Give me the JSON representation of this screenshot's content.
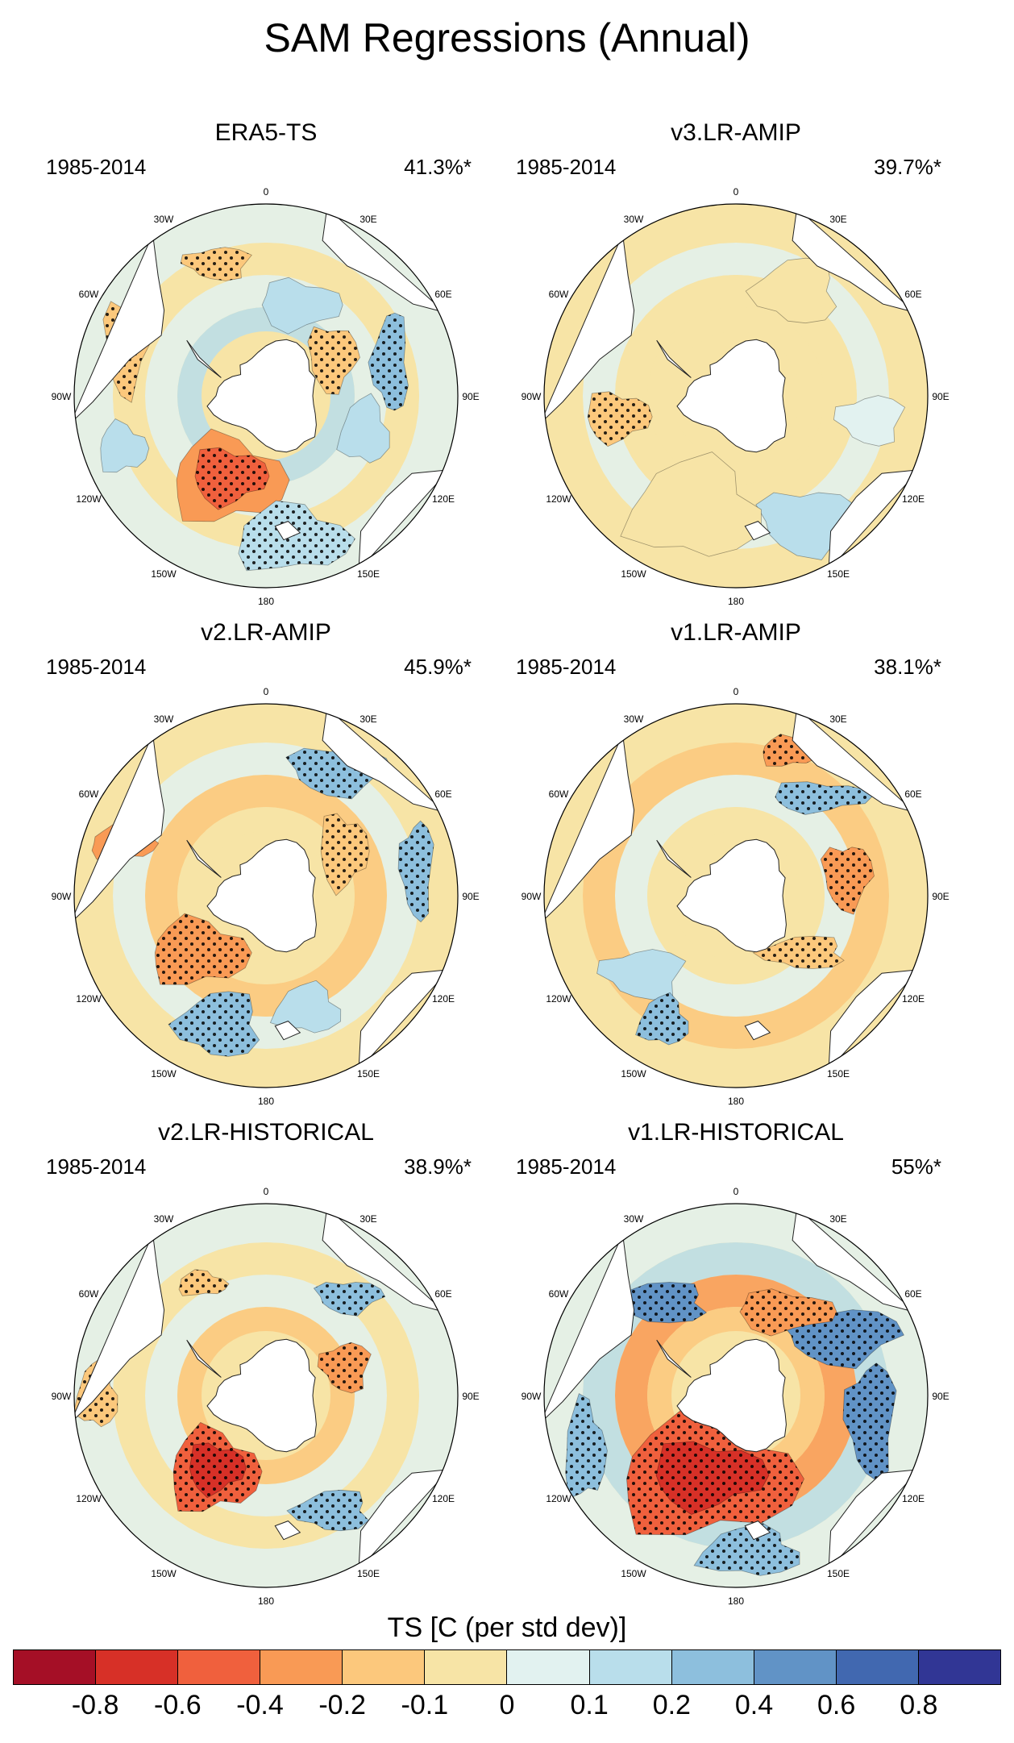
{
  "title": "SAM Regressions (Annual)",
  "lon_labels": [
    "0",
    "30E",
    "60E",
    "90E",
    "120E",
    "150E",
    "180",
    "150W",
    "120W",
    "90W",
    "60W",
    "30W"
  ],
  "panels": [
    {
      "title": "ERA5-TS",
      "period": "1985-2014",
      "variance": "41.3%*"
    },
    {
      "title": "v3.LR-AMIP",
      "period": "1985-2014",
      "variance": "39.7%*"
    },
    {
      "title": "v2.LR-AMIP",
      "period": "1985-2014",
      "variance": "45.9%*"
    },
    {
      "title": "v1.LR-AMIP",
      "period": "1985-2014",
      "variance": "38.1%*"
    },
    {
      "title": "v2.LR-HISTORICAL",
      "period": "1985-2014",
      "variance": "38.9%*"
    },
    {
      "title": "v1.LR-HISTORICAL",
      "period": "1985-2014",
      "variance": "55%*"
    }
  ],
  "colorbar": {
    "label": "TS [C (per std dev)]",
    "colors": [
      "#a50f26",
      "#d73027",
      "#f0603d",
      "#f99a55",
      "#fcc87c",
      "#f7e4a6",
      "#e2f2f0",
      "#b9deeb",
      "#8dbfdd",
      "#6193c6",
      "#4168b0",
      "#313695"
    ],
    "ticks": [
      "-0.8",
      "-0.6",
      "-0.4",
      "-0.2",
      "-0.1",
      "0",
      "0.1",
      "0.2",
      "0.4",
      "0.6",
      "0.8"
    ]
  }
}
